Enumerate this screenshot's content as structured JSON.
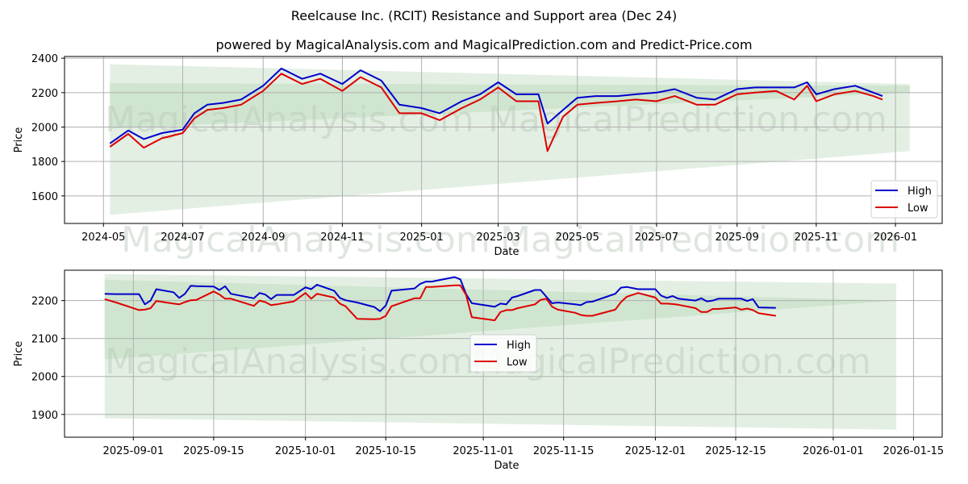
{
  "header": {
    "title": "Reelcause Inc. (RCIT) Resistance and Support area (Dec 24)",
    "subtitle": "powered by MagicalAnalysis.com and MagicalPrediction.com and Predict-Price.com"
  },
  "watermarks": [
    "MagicalAnalysis.com",
    "MagicalPrediction.com"
  ],
  "colors": {
    "high": "#0000cc",
    "low": "#dd0000",
    "band_outer": "#e3efe3",
    "band_inner": "#cfe5cf",
    "grid": "#b0b0b0"
  },
  "chart_data": [
    {
      "type": "line",
      "title": "Full period",
      "xlabel": "Date",
      "ylabel": "Price",
      "ylim": [
        1440,
        2410
      ],
      "xticks": [
        "2024-05",
        "2024-07",
        "2024-09",
        "2024-11",
        "2025-01",
        "2025-03",
        "2025-05",
        "2025-07",
        "2025-09",
        "2025-11",
        "2026-01"
      ],
      "yticks": [
        1600,
        1800,
        2000,
        2200,
        2400
      ],
      "grid": true,
      "legend": {
        "position": "lower right",
        "entries": [
          "High",
          "Low"
        ]
      },
      "x": [
        "2024-05-06",
        "2024-05-20",
        "2024-06-01",
        "2024-06-15",
        "2024-07-01",
        "2024-07-10",
        "2024-07-20",
        "2024-08-01",
        "2024-08-15",
        "2024-09-01",
        "2024-09-15",
        "2024-10-01",
        "2024-10-15",
        "2024-11-01",
        "2024-11-15",
        "2024-12-01",
        "2024-12-15",
        "2025-01-01",
        "2025-01-15",
        "2025-02-01",
        "2025-02-15",
        "2025-03-01",
        "2025-03-15",
        "2025-04-01",
        "2025-04-08",
        "2025-04-20",
        "2025-05-01",
        "2025-05-15",
        "2025-06-01",
        "2025-06-15",
        "2025-07-01",
        "2025-07-15",
        "2025-08-01",
        "2025-08-15",
        "2025-09-01",
        "2025-09-15",
        "2025-10-01",
        "2025-10-15",
        "2025-10-25",
        "2025-11-01",
        "2025-11-15",
        "2025-12-01",
        "2025-12-15",
        "2025-12-22"
      ],
      "series": [
        {
          "name": "High",
          "values": [
            1905,
            1980,
            1930,
            1965,
            1985,
            2080,
            2130,
            2140,
            2160,
            2240,
            2340,
            2280,
            2310,
            2250,
            2330,
            2270,
            2130,
            2110,
            2080,
            2150,
            2190,
            2260,
            2190,
            2190,
            2020,
            2100,
            2170,
            2180,
            2180,
            2190,
            2200,
            2220,
            2170,
            2160,
            2220,
            2230,
            2230,
            2230,
            2260,
            2190,
            2220,
            2240,
            2200,
            2180
          ],
          "color": "#0000cc"
        },
        {
          "name": "Low",
          "values": [
            1885,
            1960,
            1880,
            1935,
            1965,
            2050,
            2100,
            2110,
            2130,
            2210,
            2310,
            2250,
            2280,
            2210,
            2290,
            2230,
            2080,
            2080,
            2040,
            2110,
            2160,
            2230,
            2150,
            2150,
            1860,
            2060,
            2130,
            2140,
            2150,
            2160,
            2150,
            2180,
            2130,
            2130,
            2190,
            2200,
            2210,
            2160,
            2240,
            2150,
            2190,
            2210,
            2180,
            2160
          ],
          "color": "#dd0000"
        }
      ],
      "bands": {
        "resistance": {
          "start": [
            2255,
            2365
          ],
          "end": [
            2240,
            2250
          ]
        },
        "support": {
          "start": [
            1990,
            1490
          ],
          "end": [
            2200,
            1860
          ]
        },
        "x_range": [
          "2024-05-06",
          "2026-01-12"
        ]
      }
    },
    {
      "type": "line",
      "title": "Recent period (zoom)",
      "xlabel": "Date",
      "ylabel": "Price",
      "ylim": [
        1840,
        2280
      ],
      "xticks": [
        "2025-09-01",
        "2025-09-15",
        "2025-10-01",
        "2025-10-15",
        "2025-11-01",
        "2025-11-15",
        "2025-12-01",
        "2025-12-15",
        "2026-01-01",
        "2026-01-15"
      ],
      "yticks": [
        1900,
        2000,
        2100,
        2200
      ],
      "grid": true,
      "legend": {
        "position": "center",
        "entries": [
          "High",
          "Low"
        ]
      },
      "x": [
        "2025-08-27",
        "2025-08-29",
        "2025-09-02",
        "2025-09-03",
        "2025-09-04",
        "2025-09-05",
        "2025-09-08",
        "2025-09-09",
        "2025-09-10",
        "2025-09-11",
        "2025-09-12",
        "2025-09-15",
        "2025-09-16",
        "2025-09-17",
        "2025-09-18",
        "2025-09-22",
        "2025-09-23",
        "2025-09-24",
        "2025-09-25",
        "2025-09-26",
        "2025-09-29",
        "2025-10-01",
        "2025-10-02",
        "2025-10-03",
        "2025-10-06",
        "2025-10-07",
        "2025-10-08",
        "2025-10-10",
        "2025-10-13",
        "2025-10-14",
        "2025-10-15",
        "2025-10-16",
        "2025-10-20",
        "2025-10-21",
        "2025-10-22",
        "2025-10-23",
        "2025-10-27",
        "2025-10-28",
        "2025-10-29",
        "2025-10-30",
        "2025-11-03",
        "2025-11-04",
        "2025-11-05",
        "2025-11-06",
        "2025-11-07",
        "2025-11-10",
        "2025-11-11",
        "2025-11-12",
        "2025-11-13",
        "2025-11-14",
        "2025-11-17",
        "2025-11-18",
        "2025-11-19",
        "2025-11-20",
        "2025-11-24",
        "2025-11-25",
        "2025-11-26",
        "2025-11-28",
        "2025-12-01",
        "2025-12-02",
        "2025-12-03",
        "2025-12-04",
        "2025-12-05",
        "2025-12-08",
        "2025-12-09",
        "2025-12-10",
        "2025-12-11",
        "2025-12-12",
        "2025-12-15",
        "2025-12-16",
        "2025-12-17",
        "2025-12-18",
        "2025-12-19",
        "2025-12-22"
      ],
      "series": [
        {
          "name": "High",
          "values": [
            2218,
            2217,
            2217,
            2190,
            2200,
            2230,
            2222,
            2207,
            2218,
            2239,
            2238,
            2237,
            2228,
            2238,
            2218,
            2206,
            2220,
            2216,
            2204,
            2215,
            2215,
            2235,
            2230,
            2242,
            2226,
            2207,
            2201,
            2195,
            2183,
            2172,
            2187,
            2226,
            2232,
            2244,
            2250,
            2250,
            2262,
            2256,
            2217,
            2193,
            2184,
            2192,
            2190,
            2208,
            2212,
            2228,
            2228,
            2210,
            2193,
            2195,
            2190,
            2188,
            2196,
            2197,
            2218,
            2234,
            2236,
            2230,
            2230,
            2213,
            2207,
            2212,
            2205,
            2200,
            2206,
            2198,
            2200,
            2205,
            2205,
            2205,
            2199,
            2204,
            2182,
            2181
          ],
          "color": "#0000cc"
        },
        {
          "name": "Low",
          "values": [
            2204,
            2195,
            2175,
            2176,
            2180,
            2199,
            2192,
            2190,
            2196,
            2201,
            2202,
            2224,
            2216,
            2205,
            2205,
            2186,
            2200,
            2196,
            2188,
            2190,
            2198,
            2220,
            2205,
            2218,
            2208,
            2192,
            2185,
            2152,
            2151,
            2152,
            2160,
            2185,
            2206,
            2206,
            2236,
            2236,
            2240,
            2240,
            2215,
            2156,
            2148,
            2170,
            2175,
            2175,
            2180,
            2190,
            2202,
            2205,
            2184,
            2176,
            2168,
            2162,
            2160,
            2160,
            2176,
            2196,
            2210,
            2220,
            2208,
            2192,
            2192,
            2191,
            2189,
            2180,
            2170,
            2170,
            2178,
            2178,
            2182,
            2176,
            2179,
            2175,
            2167,
            2160
          ],
          "color": "#dd0000"
        }
      ],
      "bands": {
        "resistance": {
          "start": [
            2255,
            2270
          ],
          "end": [
            2200,
            2245
          ]
        },
        "support": {
          "start": [
            2045,
            1890
          ],
          "end": [
            2200,
            1860
          ]
        },
        "x_range": [
          "2025-08-27",
          "2026-01-12"
        ]
      }
    }
  ]
}
